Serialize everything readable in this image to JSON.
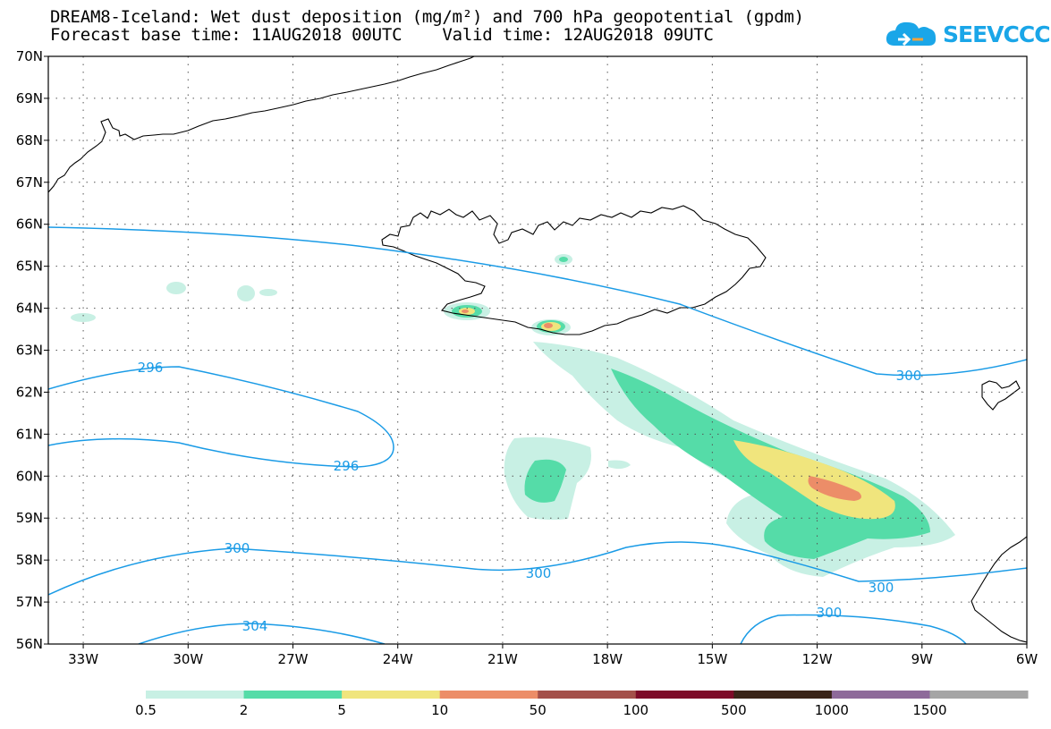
{
  "header": {
    "title": "DREAM8-Iceland: Wet dust deposition (mg/m²) and 700 hPa geopotential (gpdm)",
    "base_time_label": "Forecast base time: 11AUG2018 00UTC",
    "valid_time_label": "Valid time: 12AUG2018 09UTC"
  },
  "logo": {
    "text": "SEEVCCC",
    "icon": "cloud-icon",
    "color": "#1aa6e8"
  },
  "map": {
    "lat_labels": [
      "70N",
      "69N",
      "68N",
      "67N",
      "66N",
      "65N",
      "64N",
      "63N",
      "62N",
      "61N",
      "60N",
      "59N",
      "58N",
      "57N",
      "56N"
    ],
    "lon_labels": [
      "33W",
      "30W",
      "27W",
      "24W",
      "21W",
      "18W",
      "15W",
      "12W",
      "9W",
      "6W"
    ],
    "lat_values": [
      70,
      69,
      68,
      67,
      66,
      65,
      64,
      63,
      62,
      61,
      60,
      59,
      58,
      57,
      56
    ],
    "lon_values": [
      -33,
      -30,
      -27,
      -24,
      -21,
      -18,
      -15,
      -12,
      -9,
      -6
    ],
    "lon_range": [
      -34.0,
      -6.0
    ],
    "lat_range": [
      56,
      70
    ],
    "gridlines": "dotted",
    "contour_color": "#1a9be6",
    "contour_labels": [
      "296",
      "296",
      "300",
      "300",
      "300",
      "300",
      "300",
      "304"
    ]
  },
  "colorbar": {
    "labels": [
      "0.5",
      "2",
      "5",
      "10",
      "50",
      "100",
      "500",
      "1000",
      "1500"
    ],
    "colors": [
      "#c8f0e4",
      "#55dca8",
      "#f0e57d",
      "#ec8d68",
      "#a4504a",
      "#7d0a28",
      "#3a2418",
      "#8e6a9a",
      "#a5a5a5"
    ]
  }
}
